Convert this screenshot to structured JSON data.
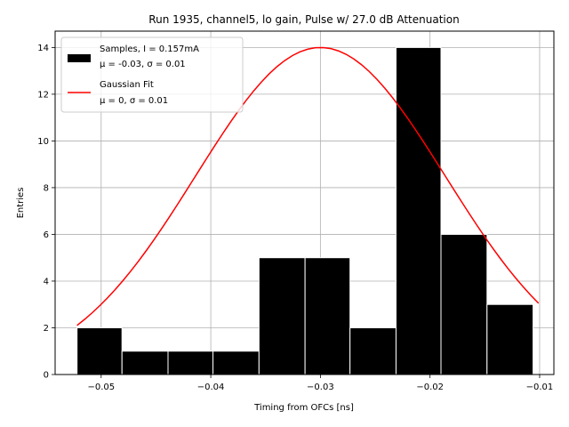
{
  "chart_data": {
    "type": "bar",
    "title": "Run 1935, channel5, lo gain, Pulse w/ 27.0 dB Attenuation",
    "xlabel": "Timing from OFCs [ns]",
    "ylabel": "Entries",
    "xlim": [
      -0.0542,
      -0.0087
    ],
    "ylim": [
      0,
      14.7
    ],
    "grid": true,
    "legend_placement": "top-left",
    "x_ticks": [
      -0.05,
      -0.04,
      -0.03,
      -0.02,
      -0.01
    ],
    "x_tick_labels": [
      "−0.05",
      "−0.04",
      "−0.03",
      "−0.02",
      "−0.01"
    ],
    "y_ticks": [
      0,
      2,
      4,
      6,
      8,
      10,
      12,
      14
    ],
    "y_tick_labels": [
      "0",
      "2",
      "4",
      "6",
      "8",
      "10",
      "12",
      "14"
    ],
    "histogram": {
      "name_line1": "Samples, I = 0.157mA",
      "name_line2": "μ = -0.03, σ = 0.01",
      "color": "#000000",
      "edge_color": "#ffffff",
      "bin_edges": [
        -0.0522,
        -0.0481,
        -0.0439,
        -0.0398,
        -0.0356,
        -0.0314,
        -0.0273,
        -0.0231,
        -0.019,
        -0.0148,
        -0.0106
      ],
      "counts": [
        2,
        1,
        1,
        1,
        5,
        5,
        2,
        14,
        6,
        3
      ]
    },
    "fit": {
      "name_line1": "Gaussian Fit",
      "name_line2": "μ = 0, σ = 0.01",
      "color": "#ff0000",
      "amplitude": 14.0,
      "mean": -0.03,
      "sigma": 0.0114,
      "x_range": [
        -0.0522,
        -0.0101
      ]
    }
  }
}
